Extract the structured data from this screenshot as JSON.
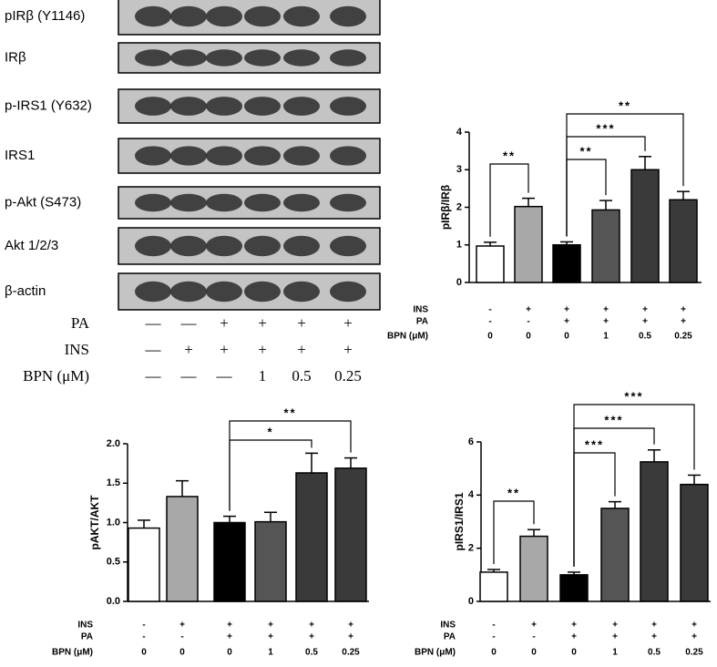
{
  "blot": {
    "labels": [
      "pIRβ (Y1146)",
      "IRβ",
      "p-IRS1 (Y632)",
      "IRS1",
      "p-Akt (S473)",
      "Akt 1/2/3",
      "β-actin"
    ],
    "treatments": [
      {
        "label": "PA",
        "cells": [
          "—",
          "—",
          "+",
          "+",
          "+",
          "+"
        ]
      },
      {
        "label": "INS",
        "cells": [
          "—",
          "+",
          "+",
          "+",
          "+",
          "+"
        ]
      },
      {
        "label": "BPN (μM)",
        "cells": [
          "—",
          "—",
          "—",
          "1",
          "0.5",
          "0.25"
        ]
      }
    ]
  },
  "chart_data": [
    {
      "type": "bar",
      "y_label": "pIRβ/IRβ",
      "values": [
        0.97,
        2.02,
        1.0,
        1.93,
        3.0,
        2.2
      ],
      "errors": [
        0.1,
        0.22,
        0.08,
        0.25,
        0.35,
        0.22
      ],
      "colors": [
        "#ffffff",
        "#a8a8a8",
        "#000000",
        "#555555",
        "#3a3a3a",
        "#3a3a3a"
      ],
      "ylim": [
        0,
        4
      ],
      "yticks": [
        0,
        1,
        2,
        3,
        4
      ],
      "annotations": [
        "**",
        "**",
        "***",
        "**"
      ],
      "rows": [
        {
          "label": "INS",
          "cells": [
            "-",
            "+",
            "+",
            "+",
            "+",
            "+"
          ]
        },
        {
          "label": "PA",
          "cells": [
            "-",
            "-",
            "+",
            "+",
            "+",
            "+"
          ]
        },
        {
          "label": "BPN (μM)",
          "cells": [
            0,
            0,
            0,
            1,
            0.5,
            0.25
          ]
        }
      ]
    },
    {
      "type": "bar",
      "y_label": "pAKT/AKT",
      "values": [
        0.93,
        1.33,
        1.0,
        1.01,
        1.63,
        1.69
      ],
      "errors": [
        0.1,
        0.2,
        0.08,
        0.12,
        0.25,
        0.13
      ],
      "colors": [
        "#ffffff",
        "#a8a8a8",
        "#000000",
        "#555555",
        "#3a3a3a",
        "#3a3a3a"
      ],
      "ylim": [
        0,
        2
      ],
      "yticks": [
        {
          "value": 0,
          "label": "0.0"
        },
        0.5,
        {
          "value": 1,
          "label": "1.0"
        },
        1.5,
        {
          "value": 2,
          "label": "2.0"
        }
      ],
      "annotations": [
        "*",
        "**"
      ],
      "rows": [
        {
          "label": "INS",
          "cells": [
            "-",
            "+",
            "+",
            "+",
            "+",
            "+"
          ]
        },
        {
          "label": "PA",
          "cells": [
            "-",
            "-",
            "+",
            "+",
            "+",
            "+"
          ]
        },
        {
          "label": "BPN (μM)",
          "cells": [
            0,
            0,
            0,
            1,
            0.5,
            0.25
          ]
        }
      ]
    },
    {
      "type": "bar",
      "y_label": "pIRS1/IRS1",
      "values": [
        1.1,
        2.45,
        1.0,
        3.5,
        5.25,
        4.4
      ],
      "errors": [
        0.1,
        0.25,
        0.1,
        0.25,
        0.45,
        0.35
      ],
      "colors": [
        "#ffffff",
        "#a8a8a8",
        "#000000",
        "#555555",
        "#3a3a3a",
        "#3a3a3a"
      ],
      "ylim": [
        0,
        6
      ],
      "yticks": [
        0,
        2,
        4,
        6
      ],
      "annotations": [
        "**",
        "***",
        "***",
        "***"
      ],
      "rows": [
        {
          "label": "INS",
          "cells": [
            "-",
            "+",
            "+",
            "+",
            "+",
            "+"
          ]
        },
        {
          "label": "PA",
          "cells": [
            "-",
            "-",
            "+",
            "+",
            "+",
            "+"
          ]
        },
        {
          "label": "BPN (μM)",
          "cells": [
            0,
            0,
            0,
            1,
            0.5,
            0.25
          ]
        }
      ]
    }
  ]
}
